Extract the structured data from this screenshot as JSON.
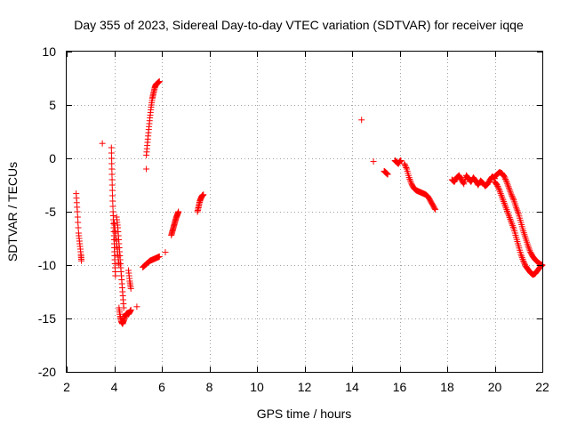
{
  "chart_data": {
    "type": "scatter",
    "title": "Day 355 of 2023, Sidereal Day-to-day VTEC variation (SDTVAR) for receiver iqqe",
    "xlabel": "GPS time / hours",
    "ylabel": "SDTVAR / TECUs",
    "xlim": [
      2,
      22
    ],
    "ylim": [
      -20,
      10
    ],
    "xticks": [
      2,
      4,
      6,
      8,
      10,
      12,
      14,
      16,
      18,
      20,
      22
    ],
    "yticks": [
      -20,
      -15,
      -10,
      -5,
      0,
      5,
      10
    ],
    "grid": true,
    "marker": "+",
    "color": "#ff0000",
    "series": [
      {
        "name": "SDTVAR",
        "segments": [
          {
            "x": [
              2.4,
              2.45,
              2.5,
              2.55,
              2.6,
              2.62
            ],
            "y": [
              -3.3,
              -5.0,
              -7.0,
              -8.0,
              -9.0,
              -9.6
            ]
          },
          {
            "x": [
              3.5
            ],
            "y": [
              1.4
            ]
          },
          {
            "x": [
              3.88,
              3.9,
              3.92,
              3.95,
              3.98,
              4.0,
              4.02,
              4.05
            ],
            "y": [
              1.0,
              -1.0,
              -3.0,
              -5.0,
              -6.5,
              -8.0,
              -9.5,
              -11.0
            ]
          },
          {
            "x": [
              4.0,
              4.05,
              4.1,
              4.15,
              4.2
            ],
            "y": [
              -6.0,
              -7.0,
              -8.0,
              -9.0,
              -10.0
            ]
          },
          {
            "x": [
              4.1,
              4.15,
              4.2,
              4.25,
              4.3,
              4.35,
              4.4
            ],
            "y": [
              -5.5,
              -6.5,
              -8.0,
              -9.5,
              -11.0,
              -12.5,
              -14.0
            ]
          },
          {
            "x": [
              4.2,
              4.25,
              4.3,
              4.35,
              4.4,
              4.45,
              4.5,
              4.55,
              4.6,
              4.65,
              4.7
            ],
            "y": [
              -14.0,
              -14.8,
              -15.3,
              -15.5,
              -15.2,
              -14.8,
              -14.6,
              -14.5,
              -14.6,
              -14.4,
              -14.2
            ]
          },
          {
            "x": [
              4.6,
              4.65,
              4.7
            ],
            "y": [
              -10.5,
              -11.5,
              -12.2
            ]
          },
          {
            "x": [
              4.95
            ],
            "y": [
              -13.9
            ]
          },
          {
            "x": [
              5.2,
              5.3,
              5.4,
              5.5,
              5.6,
              5.7,
              5.8,
              5.9
            ],
            "y": [
              -10.2,
              -10.0,
              -9.8,
              -9.6,
              -9.5,
              -9.4,
              -9.3,
              -9.2
            ]
          },
          {
            "x": [
              5.35
            ],
            "y": [
              -1.0
            ]
          },
          {
            "x": [
              5.35,
              5.4,
              5.45,
              5.5,
              5.55,
              5.6,
              5.65,
              5.7,
              5.75,
              5.8,
              5.85,
              5.9
            ],
            "y": [
              0.3,
              1.5,
              2.7,
              3.8,
              4.8,
              5.6,
              6.1,
              6.6,
              6.9,
              7.0,
              7.1,
              7.2
            ]
          },
          {
            "x": [
              6.15
            ],
            "y": [
              -8.8
            ]
          },
          {
            "x": [
              6.4,
              6.45,
              6.5,
              6.55,
              6.6,
              6.65,
              6.7
            ],
            "y": [
              -7.2,
              -6.8,
              -6.4,
              -6.0,
              -5.6,
              -5.3,
              -5.0
            ]
          },
          {
            "x": [
              7.5,
              7.55,
              7.6,
              7.65,
              7.7,
              7.75
            ],
            "y": [
              -5.0,
              -4.5,
              -4.0,
              -3.7,
              -3.5,
              -3.4
            ]
          },
          {
            "x": [
              14.4
            ],
            "y": [
              3.6
            ]
          },
          {
            "x": [
              14.9
            ],
            "y": [
              -0.3
            ]
          },
          {
            "x": [
              15.35,
              15.4,
              15.45,
              15.5
            ],
            "y": [
              -1.2,
              -1.3,
              -1.4,
              -1.5
            ]
          },
          {
            "x": [
              15.8,
              15.85,
              15.9,
              15.95,
              16.0,
              16.05
            ],
            "y": [
              -0.2,
              -0.3,
              -0.4,
              -0.5,
              -0.3,
              -0.2
            ]
          },
          {
            "x": [
              16.2,
              16.3,
              16.4,
              16.5,
              16.6,
              16.7,
              16.8,
              16.9,
              17.0,
              17.1,
              17.2,
              17.3,
              17.4,
              17.5
            ],
            "y": [
              -0.5,
              -1.0,
              -1.8,
              -2.4,
              -2.8,
              -3.0,
              -3.1,
              -3.2,
              -3.3,
              -3.4,
              -3.6,
              -4.0,
              -4.4,
              -4.8
            ]
          },
          {
            "x": [
              18.2,
              18.3,
              18.4,
              18.5,
              18.6,
              18.7,
              18.8,
              18.9,
              19.0,
              19.1,
              19.2,
              19.3,
              19.4,
              19.5,
              19.6,
              19.7,
              19.8,
              19.9,
              20.0
            ],
            "y": [
              -2.0,
              -2.2,
              -1.8,
              -1.6,
              -2.0,
              -2.4,
              -1.6,
              -1.9,
              -2.2,
              -1.8,
              -2.1,
              -2.5,
              -2.1,
              -2.3,
              -2.6,
              -2.4,
              -2.0,
              -1.7,
              -1.9
            ]
          },
          {
            "x": [
              20.0,
              20.1,
              20.2,
              20.3,
              20.4,
              20.5,
              20.6,
              20.7,
              20.8,
              20.9,
              21.0,
              21.1,
              21.2,
              21.3,
              21.4,
              21.5,
              21.6,
              21.7,
              21.8,
              21.9,
              22.0
            ],
            "y": [
              -2.2,
              -2.5,
              -3.0,
              -3.6,
              -4.2,
              -4.8,
              -5.4,
              -6.0,
              -6.6,
              -7.4,
              -8.2,
              -9.0,
              -9.6,
              -10.1,
              -10.4,
              -10.7,
              -10.9,
              -10.8,
              -10.5,
              -10.2,
              -10.0
            ]
          },
          {
            "x": [
              20.0,
              20.1,
              20.2,
              20.3,
              20.4,
              20.5,
              20.6,
              20.7,
              20.8,
              20.9,
              21.0,
              21.1,
              21.2,
              21.3,
              21.4,
              21.5,
              21.6,
              21.7,
              21.8,
              21.9,
              22.0
            ],
            "y": [
              -1.7,
              -1.5,
              -1.3,
              -1.4,
              -1.7,
              -2.2,
              -2.8,
              -3.4,
              -3.9,
              -4.6,
              -5.2,
              -6.0,
              -6.8,
              -7.5,
              -8.2,
              -8.8,
              -9.2,
              -9.5,
              -9.7,
              -9.9,
              -10.0
            ]
          }
        ]
      }
    ]
  }
}
